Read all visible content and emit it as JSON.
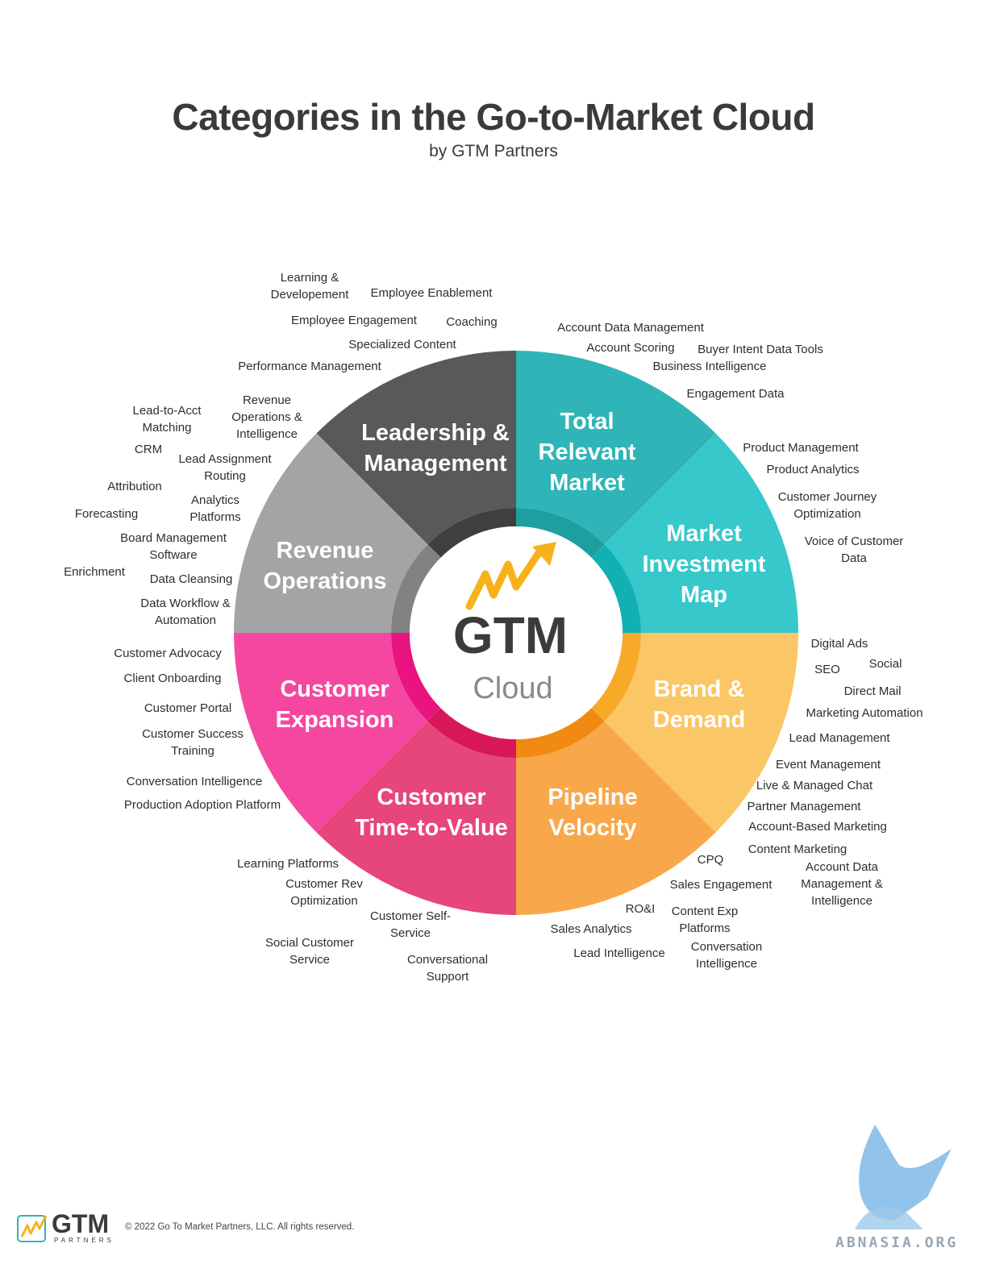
{
  "header": {
    "title": "Categories in the Go-to-Market Cloud",
    "subtitle": "by GTM Partners"
  },
  "center": {
    "line1": "GTM",
    "line2": "Cloud"
  },
  "segments": [
    {
      "name": "Leadership & Management",
      "line1": "Leadership &",
      "line2": "Management",
      "line3": "",
      "color": "#58595b"
    },
    {
      "name": "Total Relevant Market",
      "line1": "Total",
      "line2": "Relevant",
      "line3": "Market",
      "color": "#2fb5b8"
    },
    {
      "name": "Market Investment Map",
      "line1": "Market",
      "line2": "Investment",
      "line3": "Map",
      "color": "#36c8cb"
    },
    {
      "name": "Brand & Demand",
      "line1": "Brand &",
      "line2": "Demand",
      "line3": "",
      "color": "#fbc665"
    },
    {
      "name": "Pipeline Velocity",
      "line1": "Pipeline",
      "line2": "Velocity",
      "line3": "",
      "color": "#f8a84a"
    },
    {
      "name": "Customer Time-to-Value",
      "line1": "Customer",
      "line2": "Time-to-Value",
      "line3": "",
      "color": "#e64679"
    },
    {
      "name": "Customer Expansion",
      "line1": "Customer",
      "line2": "Expansion",
      "line3": "",
      "color": "#f547a0"
    },
    {
      "name": "Revenue Operations",
      "line1": "Revenue",
      "line2": "Operations",
      "line3": "",
      "color": "#a3a4a6"
    }
  ],
  "labels": [
    "Learning &\nDevelopement",
    "Employee Enablement",
    "Employee Engagement",
    "Coaching",
    "Specialized Content",
    "Performance Management",
    "Account Data Management",
    "Account Scoring",
    "Buyer Intent Data Tools",
    "Business Intelligence",
    "Engagement Data",
    "Product Management",
    "Product Analytics",
    "Customer Journey\nOptimization",
    "Voice of Customer\nData",
    "Lead-to-Acct\nMatching",
    "Revenue\nOperations &\nIntelligence",
    "CRM",
    "Lead Assignment\nRouting",
    "Attribution",
    "Analytics\nPlatforms",
    "Forecasting",
    "Board Management\nSoftware",
    "Enrichment",
    "Data Cleansing",
    "Data Workflow &\nAutomation",
    "Digital Ads",
    "SEO",
    "Social",
    "Direct Mail",
    "Marketing Automation",
    "Lead Management",
    "Event Management",
    "Live & Managed Chat",
    "Partner Management",
    "Account-Based Marketing",
    "Content Marketing",
    "Customer Advocacy",
    "Client Onboarding",
    "Customer Portal",
    "Customer Success\nTraining",
    "Conversation Intelligence",
    "Production Adoption Platform",
    "Learning Platforms",
    "Customer Rev\nOptimization",
    "Customer Self-\nService",
    "Social Customer\nService",
    "Conversational\nSupport",
    "CPQ",
    "Account Data\nManagement &\nIntelligence",
    "Sales Engagement",
    "RO&I",
    "Content Exp\nPlatforms",
    "Sales Analytics",
    "Conversation\nIntelligence",
    "Lead Intelligence"
  ],
  "footer": {
    "logo_text": "GTM",
    "logo_sub": "PARTNERS",
    "copyright": "© 2022 Go To Market Partners, LLC. All rights reserved.",
    "watermark": "ABNASIA.ORG"
  }
}
